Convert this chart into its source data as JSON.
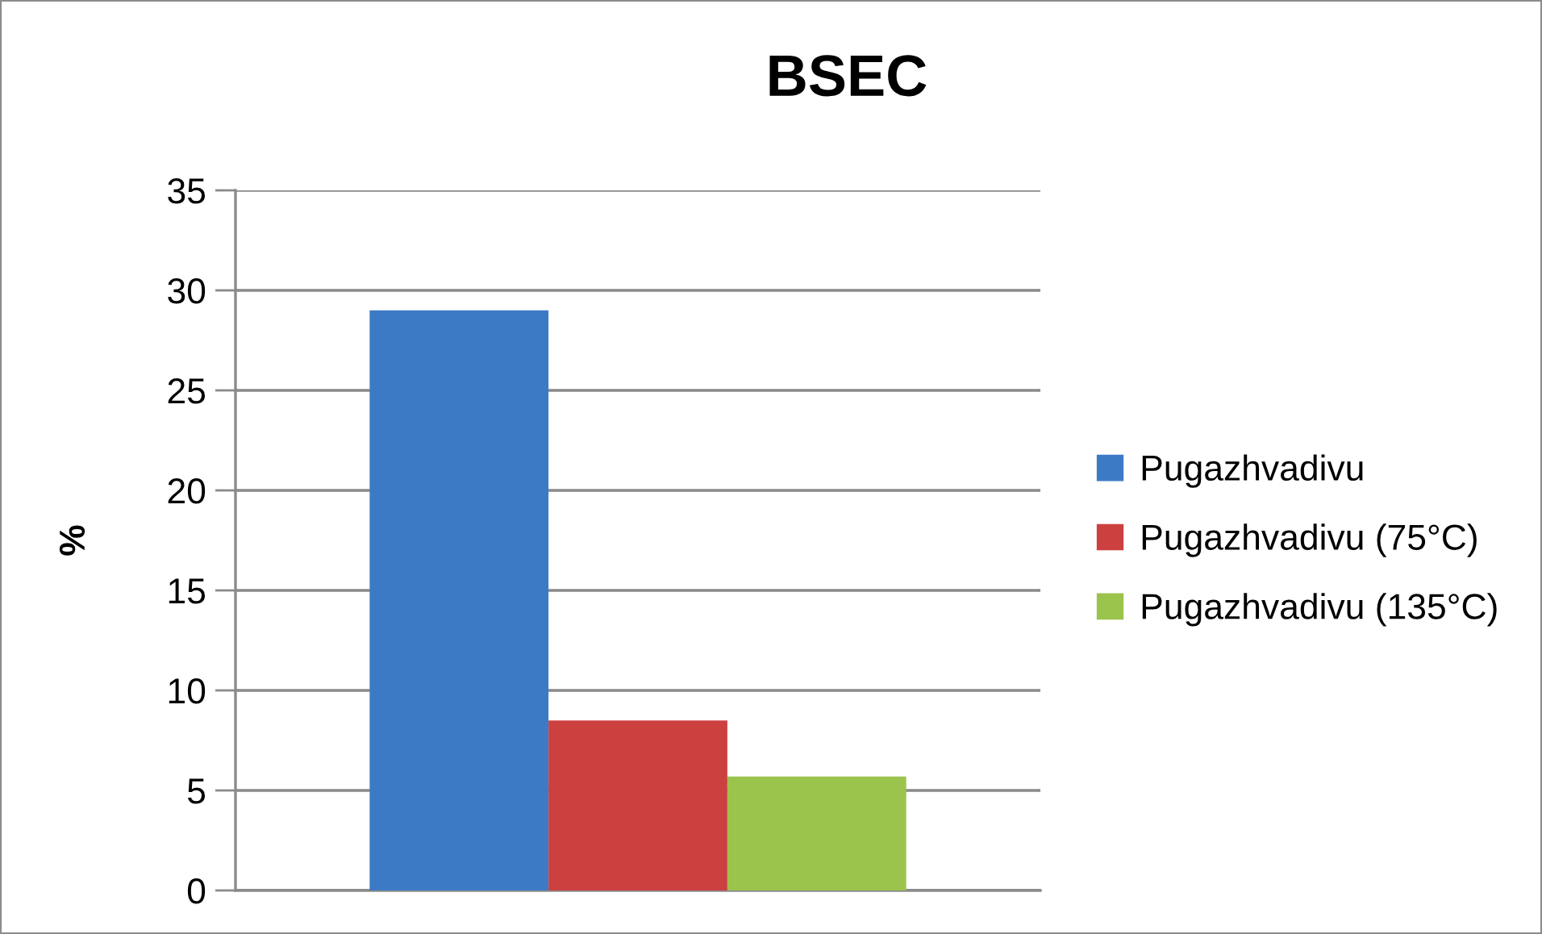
{
  "chart_data": {
    "type": "bar",
    "title": "BSEC",
    "ylabel": "%",
    "categories": [
      null
    ],
    "series": [
      {
        "name": "Pugazhvadivu",
        "color": "#3d7ac6",
        "values": [
          29
        ]
      },
      {
        "name": "Pugazhvadivu (75°C)",
        "color": "#cc4040",
        "values": [
          8.5
        ]
      },
      {
        "name": "Pugazhvadivu (135°C)",
        "color": "#9bc44c",
        "values": [
          5.7
        ]
      }
    ],
    "ylim": [
      0,
      35
    ],
    "yticks": [
      0,
      5,
      10,
      15,
      20,
      25,
      30,
      35
    ],
    "grid": "y",
    "legend": "right"
  }
}
